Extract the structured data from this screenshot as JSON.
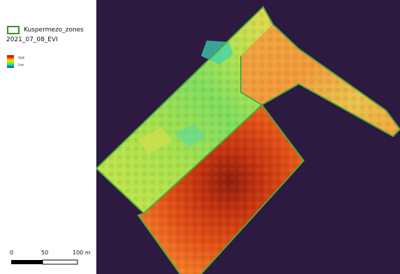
{
  "legend": {
    "zone_layer_name": "Kuspermezo_zones",
    "raster_layer_name": "2021_07_08_EVI",
    "ramp_high": "High",
    "ramp_low": "Low"
  },
  "scale_bar": {
    "label_start": "0",
    "label_mid": "50",
    "label_end": "100 m"
  },
  "colors": {
    "background": "#2d1a40",
    "zone_outline": "#4fa83b",
    "evi_high": "#8b1a0a",
    "evi_low": "#2fd6b8"
  }
}
